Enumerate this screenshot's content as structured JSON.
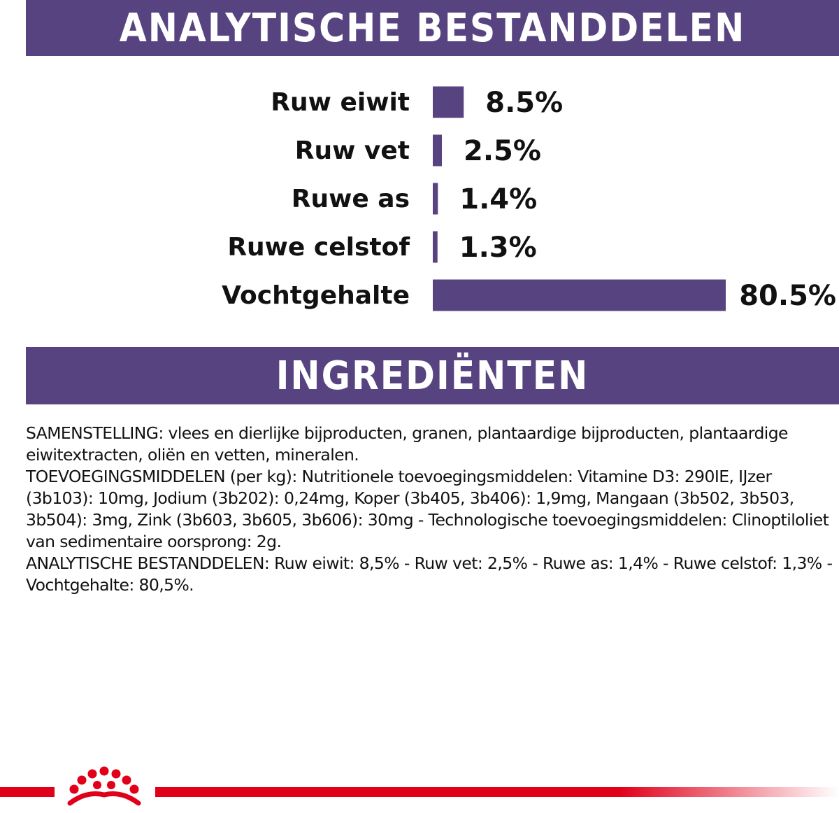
{
  "header": {
    "title": "ANALYTISCHE BESTANDDELEN"
  },
  "chart_data": {
    "type": "bar",
    "orientation": "horizontal",
    "categories": [
      "Ruw eiwit",
      "Ruw vet",
      "Ruwe as",
      "Ruwe celstof",
      "Vochtgehalte"
    ],
    "values": [
      8.5,
      2.5,
      1.4,
      1.3,
      80.5
    ],
    "value_labels": [
      "8.5%",
      "2.5%",
      "1.4%",
      "1.3%",
      "80.5%"
    ],
    "unit": "%",
    "bar_color": "#574380",
    "xlim": [
      0,
      80.5
    ],
    "grid": false,
    "legend": "none"
  },
  "ingredients": {
    "title": "INGREDIËNTEN",
    "lines": [
      "SAMENSTELLING: vlees en dierlijke bijproducten, granen, plantaardige bijproducten, plantaardige",
      "eiwitextracten, oliën en vetten, mineralen.",
      "TOEVOEGINGSMIDDELEN (per kg): Nutritionele toevoegingsmiddelen: Vitamine D3: 290IE, IJzer",
      "(3b103): 10mg, Jodium (3b202): 0,24mg, Koper (3b405, 3b406): 1,9mg, Mangaan (3b502, 3b503,",
      "3b504): 3mg, Zink (3b603, 3b605, 3b606): 30mg - Technologische toevoegingsmiddelen: Clinoptiloliet",
      "van sedimentaire oorsprong: 2g.",
      "ANALYTISCHE BESTANDDELEN: Ruw eiwit: 8,5% - Ruw vet: 2,5% - Ruwe as: 1,4% - Ruwe celstof: 1,3% -",
      "Vochtgehalte: 80,5%."
    ]
  },
  "footer": {
    "logo_icon": "royal-crown-icon",
    "line_color": "#e1001a"
  }
}
